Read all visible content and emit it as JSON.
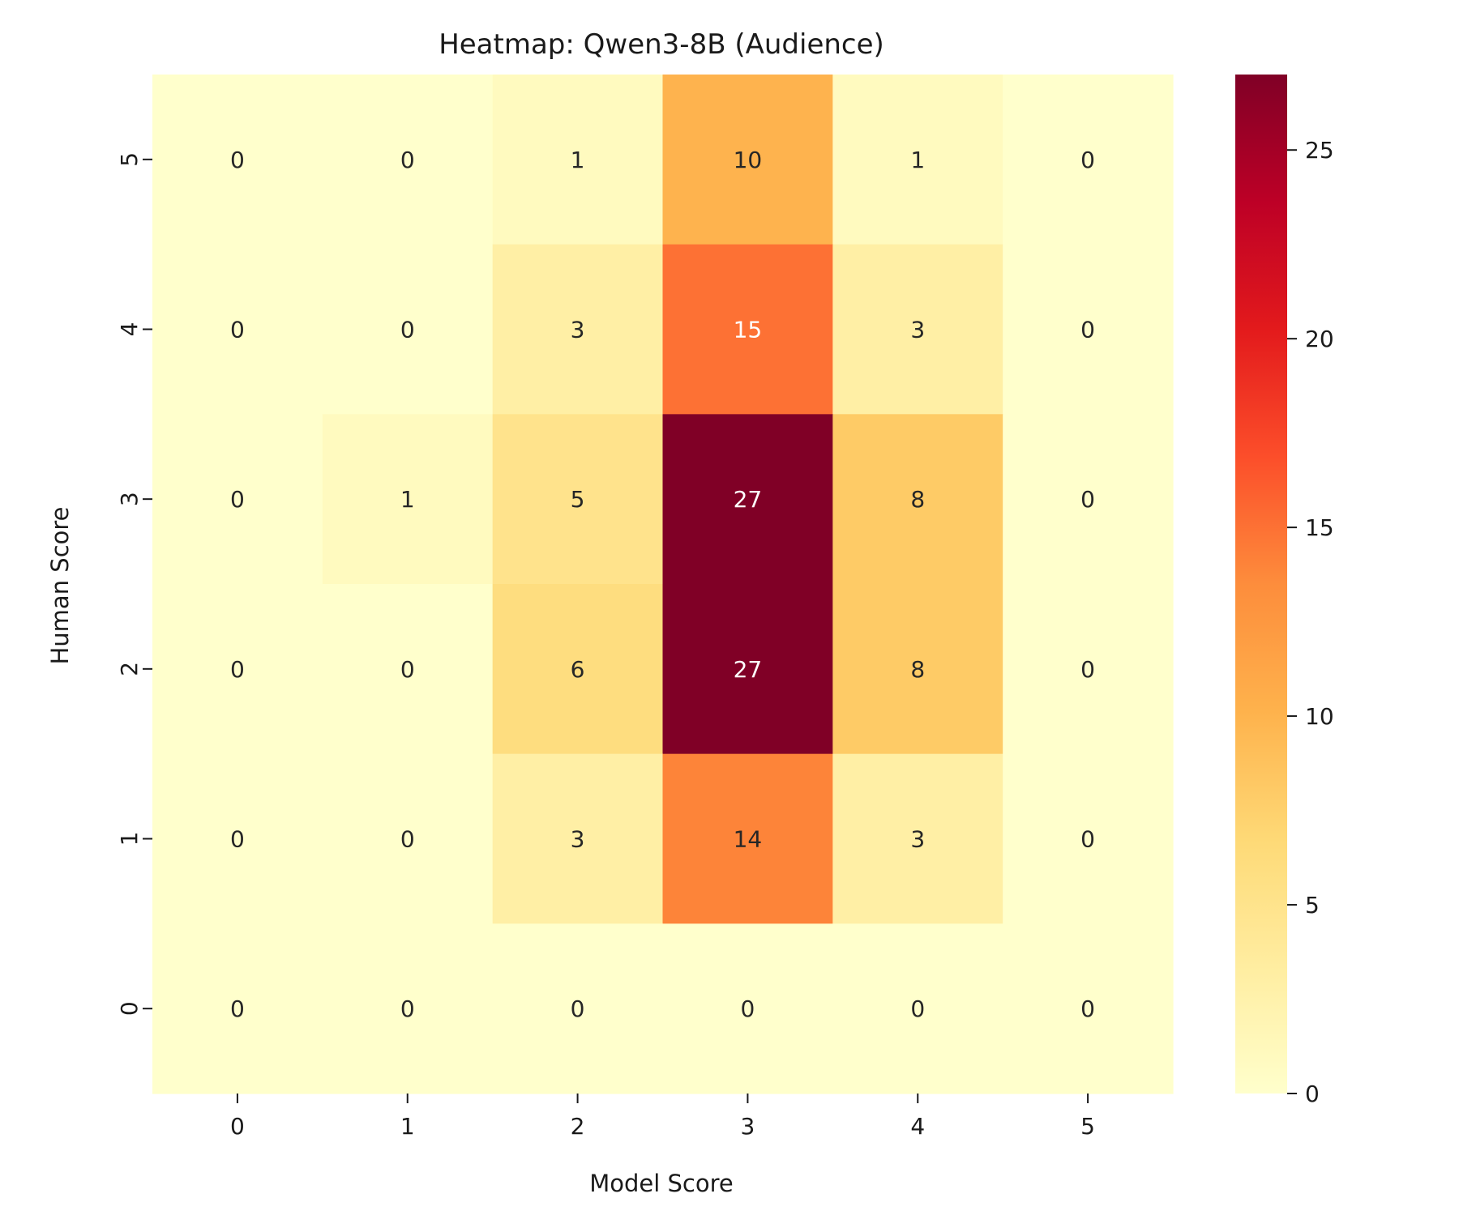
{
  "chart_data": {
    "type": "heatmap",
    "title": "Heatmap: Qwen3-8B (Audience)",
    "xlabel": "Model Score",
    "ylabel": "Human Score",
    "x_categories": [
      "0",
      "1",
      "2",
      "3",
      "4",
      "5"
    ],
    "y_categories": [
      "5",
      "4",
      "3",
      "2",
      "1",
      "0"
    ],
    "values": [
      [
        0,
        0,
        1,
        10,
        1,
        0
      ],
      [
        0,
        0,
        3,
        15,
        3,
        0
      ],
      [
        0,
        1,
        5,
        27,
        8,
        0
      ],
      [
        0,
        0,
        6,
        27,
        8,
        0
      ],
      [
        0,
        0,
        3,
        14,
        3,
        0
      ],
      [
        0,
        0,
        0,
        0,
        0,
        0
      ]
    ],
    "colormap": "YlOrRd",
    "vmin": 0,
    "vmax": 27,
    "colorbar_ticks": [
      0,
      5,
      10,
      15,
      20,
      25
    ],
    "annotate": true,
    "grid": false
  }
}
